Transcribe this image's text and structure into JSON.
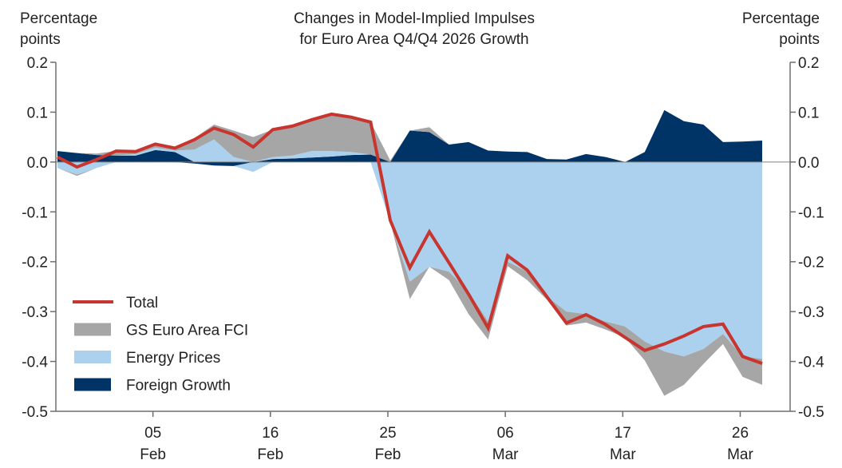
{
  "chart_data": {
    "type": "area",
    "title": "Changes in Model-Implied Impulses for Euro Area Q4/Q4 2026 Growth",
    "title_lines": [
      "Changes in Model-Implied Impulses",
      "for Euro Area Q4/Q4 2026 Growth"
    ],
    "ylabel_left": [
      "Percentage",
      "points"
    ],
    "ylabel_right": [
      "Percentage",
      "points"
    ],
    "ylim": [
      -0.5,
      0.2
    ],
    "yticks": [
      0.2,
      0.1,
      0.0,
      -0.1,
      -0.2,
      -0.3,
      -0.4,
      -0.5
    ],
    "ytick_labels": [
      "0.2",
      "0.1",
      "0.0",
      "-0.1",
      "-0.2",
      "-0.3",
      "-0.4",
      "-0.5"
    ],
    "grid": false,
    "legend_position": "bottom-left",
    "x_index_range": [
      0,
      36
    ],
    "xticks": [
      {
        "index": 5,
        "line1": "05",
        "line2": "Feb"
      },
      {
        "index": 11,
        "line1": "16",
        "line2": "Feb"
      },
      {
        "index": 17,
        "line1": "25",
        "line2": "Feb"
      },
      {
        "index": 23,
        "line1": "06",
        "line2": "Mar"
      },
      {
        "index": 29,
        "line1": "17",
        "line2": "Mar"
      },
      {
        "index": 35,
        "line1": "26",
        "line2": "Mar"
      }
    ],
    "series": [
      {
        "name": "Foreign Growth",
        "kind": "stacked-area",
        "color": "#003366",
        "values": [
          0.022,
          0.018,
          0.014,
          0.013,
          0.013,
          0.024,
          0.02,
          -0.003,
          -0.007,
          -0.008,
          0.0,
          0.006,
          0.007,
          0.009,
          0.011,
          0.014,
          0.015,
          0.0,
          0.063,
          0.06,
          0.035,
          0.04,
          0.023,
          0.021,
          0.02,
          0.006,
          0.005,
          0.016,
          0.01,
          0.0,
          0.02,
          0.104,
          0.082,
          0.075,
          0.04,
          0.041,
          0.043
        ]
      },
      {
        "name": "Energy Prices",
        "kind": "stacked-area",
        "color": "#abd1ee",
        "values": [
          -0.012,
          -0.025,
          -0.012,
          0.0,
          0.003,
          0.005,
          0.003,
          0.025,
          0.045,
          0.01,
          -0.02,
          0.004,
          0.006,
          0.013,
          0.011,
          0.006,
          0.0,
          -0.12,
          -0.24,
          -0.21,
          -0.22,
          -0.26,
          -0.32,
          -0.2,
          -0.22,
          -0.27,
          -0.3,
          -0.305,
          -0.32,
          -0.33,
          -0.36,
          -0.38,
          -0.39,
          -0.375,
          -0.345,
          -0.39,
          -0.395
        ]
      },
      {
        "name": "GS Euro Area FCI",
        "kind": "stacked-area",
        "color": "#a6a6a6",
        "values": [
          0.0,
          -0.003,
          0.003,
          0.009,
          0.005,
          0.007,
          0.005,
          0.023,
          0.03,
          0.053,
          0.05,
          0.055,
          0.059,
          0.063,
          0.074,
          0.07,
          0.065,
          0.003,
          -0.035,
          0.01,
          -0.017,
          -0.045,
          -0.036,
          -0.009,
          -0.017,
          -0.006,
          -0.028,
          -0.017,
          -0.016,
          -0.022,
          -0.038,
          -0.089,
          -0.057,
          -0.03,
          -0.02,
          -0.041,
          -0.052
        ]
      },
      {
        "name": "Total",
        "kind": "line",
        "color": "#c8352f",
        "values": [
          0.01,
          -0.01,
          0.005,
          0.022,
          0.021,
          0.036,
          0.028,
          0.045,
          0.068,
          0.055,
          0.03,
          0.065,
          0.072,
          0.085,
          0.096,
          0.09,
          0.08,
          -0.117,
          -0.212,
          -0.14,
          -0.202,
          -0.265,
          -0.333,
          -0.188,
          -0.217,
          -0.27,
          -0.323,
          -0.306,
          -0.326,
          -0.352,
          -0.378,
          -0.365,
          -0.349,
          -0.33,
          -0.325,
          -0.39,
          -0.404
        ]
      }
    ],
    "legend": [
      {
        "label": "Total",
        "kind": "line",
        "color": "#c8352f"
      },
      {
        "label": "GS Euro Area FCI",
        "kind": "box",
        "color": "#a6a6a6"
      },
      {
        "label": "Energy Prices",
        "kind": "box",
        "color": "#abd1ee"
      },
      {
        "label": "Foreign Growth",
        "kind": "box",
        "color": "#003366"
      }
    ]
  }
}
